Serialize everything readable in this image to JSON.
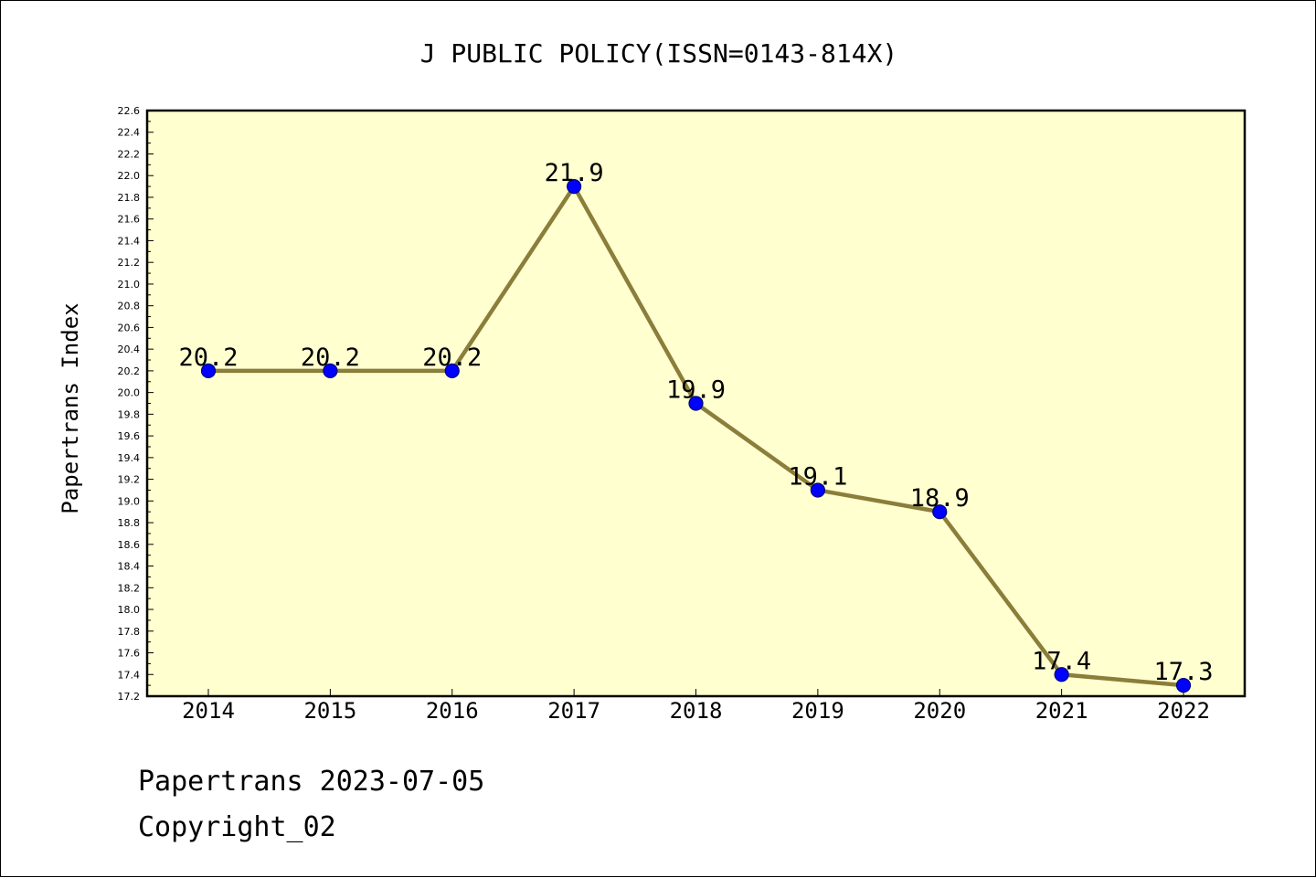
{
  "chart_data": {
    "type": "line",
    "title": "J PUBLIC POLICY(ISSN=0143-814X)",
    "xlabel": "",
    "ylabel": "Papertrans Index",
    "categories": [
      "2014",
      "2015",
      "2016",
      "2017",
      "2018",
      "2019",
      "2020",
      "2021",
      "2022"
    ],
    "series": [
      {
        "values": [
          20.2,
          20.2,
          20.2,
          21.9,
          19.9,
          19.1,
          18.9,
          17.4,
          17.3
        ],
        "data_labels": [
          "20.2",
          "20.2",
          "20.2",
          "21.9",
          "19.9",
          "19.1",
          "18.9",
          "17.4",
          "17.3"
        ]
      }
    ],
    "ylim": [
      17.2,
      22.6
    ],
    "y_major_step": 0.2,
    "y_tick_labels": [
      "17.2",
      "17.4",
      "17.6",
      "17.8",
      "18.0",
      "18.2",
      "18.4",
      "18.6",
      "18.8",
      "19.0",
      "19.2",
      "19.4",
      "19.6",
      "19.8",
      "20.0",
      "20.2",
      "20.4",
      "20.6",
      "20.8",
      "21.0",
      "21.2",
      "21.4",
      "21.6",
      "21.8",
      "22.0",
      "22.2",
      "22.4",
      "22.6"
    ],
    "grid": false,
    "legend": "none",
    "colors": {
      "plot_background": "#FFFFD0",
      "line": "#8B7D3A",
      "marker_fill": "#0000FF",
      "marker_edge": "#000080"
    }
  },
  "footer": {
    "line1": "Papertrans 2023-07-05",
    "line2": "Copyright_02"
  }
}
